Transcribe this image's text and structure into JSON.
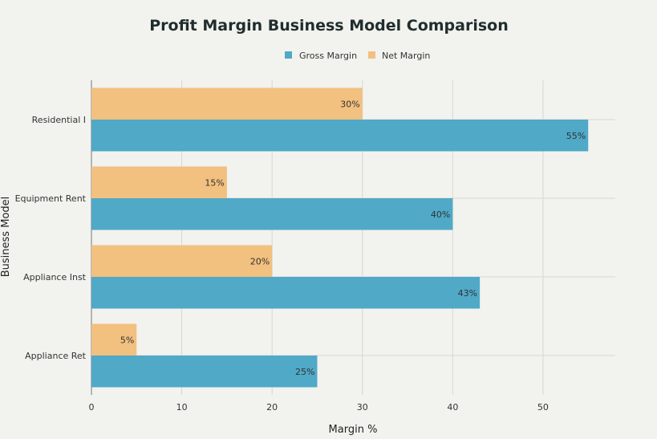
{
  "chart_data": {
    "type": "bar",
    "orientation": "horizontal",
    "title": "Profit Margin Business Model Comparison",
    "xlabel": "Margin %",
    "ylabel": "Business Model",
    "categories": [
      "Residential I",
      "Equipment Rent",
      "Appliance Inst",
      "Appliance Ret"
    ],
    "series": [
      {
        "name": "Gross Margin",
        "color": "#4fa9c7",
        "values": [
          55,
          40,
          43,
          25
        ],
        "labels": [
          "55%",
          "40%",
          "43%",
          "25%"
        ]
      },
      {
        "name": "Net Margin",
        "color": "#f2c07f",
        "values": [
          30,
          15,
          20,
          5
        ],
        "labels": [
          "30%",
          "15%",
          "20%",
          "5%"
        ]
      }
    ],
    "xlim": [
      0,
      58
    ],
    "xticks": [
      0,
      10,
      20,
      30,
      40,
      50
    ],
    "grid": true,
    "legend_position": "top-center"
  }
}
